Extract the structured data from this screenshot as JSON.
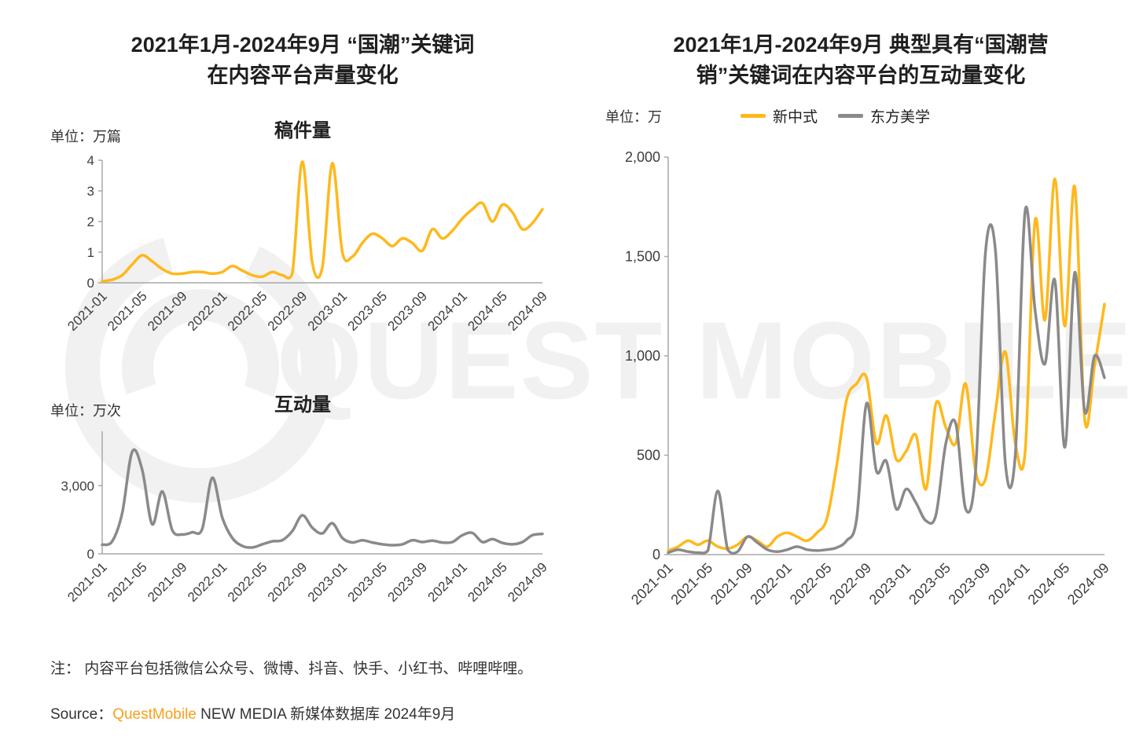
{
  "watermark": "QUEST MOBILE",
  "colors": {
    "brand_orange": "#F7A11A",
    "series_yellow": "#FFB81C",
    "series_gray": "#8A8A8A",
    "axis": "#A8A8A8",
    "tick_text": "#3d3d3d",
    "watermark_gray": "#f1f1f1"
  },
  "left_panel": {
    "title1": "2021年1月-2024年9月 “国潮”关键词",
    "title2": "在内容平台声量变化",
    "chart_top": {
      "subtitle": "稿件量",
      "unit": "单位：万篇"
    },
    "chart_bottom": {
      "subtitle": "互动量",
      "unit": "单位：万次"
    }
  },
  "right_panel": {
    "title1": "2021年1月-2024年9月 典型具有“国潮营",
    "title2": "销”关键词在内容平台的互动量变化",
    "unit": "单位：万",
    "legend": [
      {
        "label": "新中式",
        "color": "#FFB81C"
      },
      {
        "label": "东方美学",
        "color": "#8A8A8A"
      }
    ]
  },
  "footer": {
    "note": "注： 内容平台包括微信公众号、微博、抖音、快手、小红书、哔哩哔哩。",
    "source_label": "Source：",
    "source_brand": "QuestMobile",
    "source_rest": " NEW MEDIA 新媒体数据库 2024年9月"
  },
  "chart_data": [
    {
      "id": "left-top",
      "type": "line",
      "title": "稿件量",
      "panel_title": "2021年1月-2024年9月 “国潮”关键词在内容平台声量变化",
      "ylabel": "万篇",
      "grid": false,
      "ylim": [
        0,
        4
      ],
      "y_ticks": [
        0,
        1,
        2,
        3,
        4
      ],
      "x_tick_step": 4,
      "x_ticks": [
        "2021-01",
        "2021-05",
        "2021-09",
        "2022-01",
        "2022-05",
        "2022-09",
        "2023-01",
        "2023-05",
        "2023-09",
        "2024-01",
        "2024-05",
        "2024-09"
      ],
      "series": [
        {
          "name": "国潮稿件量",
          "color": "#FFB81C",
          "values": [
            0.05,
            0.1,
            0.25,
            0.6,
            0.9,
            0.7,
            0.45,
            0.3,
            0.3,
            0.35,
            0.35,
            0.3,
            0.35,
            0.55,
            0.4,
            0.25,
            0.2,
            0.35,
            0.25,
            0.3,
            3.95,
            0.65,
            0.5,
            3.9,
            1.0,
            0.85,
            1.3,
            1.6,
            1.45,
            1.2,
            1.45,
            1.3,
            1.05,
            1.75,
            1.45,
            1.7,
            2.1,
            2.4,
            2.6,
            2.0,
            2.55,
            2.3,
            1.75,
            1.95,
            2.4
          ]
        }
      ]
    },
    {
      "id": "left-bottom",
      "type": "line",
      "title": "互动量",
      "panel_title": "2021年1月-2024年9月 “国潮”关键词在内容平台声量变化",
      "ylabel": "万次",
      "grid": false,
      "ylim": [
        0,
        5400
      ],
      "y_ticks": [
        0,
        3000
      ],
      "x_tick_step": 4,
      "x_ticks": [
        "2021-01",
        "2021-05",
        "2021-09",
        "2022-01",
        "2022-05",
        "2022-09",
        "2023-01",
        "2023-05",
        "2023-09",
        "2024-01",
        "2024-05",
        "2024-09"
      ],
      "series": [
        {
          "name": "国潮互动量",
          "color": "#8A8A8A",
          "values": [
            400,
            550,
            1800,
            4500,
            3700,
            1300,
            2750,
            1050,
            850,
            950,
            1100,
            3350,
            1600,
            700,
            350,
            280,
            420,
            550,
            600,
            1000,
            1700,
            1150,
            900,
            1350,
            700,
            500,
            600,
            500,
            420,
            380,
            420,
            600,
            520,
            580,
            500,
            520,
            820,
            920,
            520,
            650,
            480,
            420,
            520,
            820,
            880
          ]
        }
      ]
    },
    {
      "id": "right",
      "type": "line",
      "title": "2021年1月-2024年9月 典型具有“国潮营销”关键词在内容平台的互动量变化",
      "ylabel": "万",
      "grid": false,
      "legend_position": "top",
      "ylim": [
        0,
        2000
      ],
      "y_ticks": [
        0,
        500,
        1000,
        1500,
        2000
      ],
      "x_tick_step": 4,
      "x_ticks": [
        "2021-01",
        "2021-05",
        "2021-09",
        "2022-01",
        "2022-05",
        "2022-09",
        "2023-01",
        "2023-05",
        "2023-09",
        "2024-01",
        "2024-05",
        "2024-09"
      ],
      "series": [
        {
          "name": "新中式",
          "color": "#FFB81C",
          "values": [
            20,
            40,
            70,
            50,
            70,
            40,
            30,
            50,
            90,
            70,
            40,
            90,
            110,
            90,
            70,
            110,
            180,
            450,
            780,
            860,
            890,
            560,
            700,
            480,
            520,
            600,
            330,
            760,
            640,
            560,
            860,
            420,
            380,
            720,
            1020,
            560,
            520,
            1680,
            1180,
            1890,
            1150,
            1850,
            680,
            950,
            1260
          ]
        },
        {
          "name": "东方美学",
          "color": "#8A8A8A",
          "values": [
            10,
            25,
            15,
            10,
            20,
            320,
            25,
            15,
            90,
            60,
            25,
            15,
            25,
            40,
            25,
            20,
            25,
            35,
            70,
            180,
            760,
            420,
            470,
            230,
            330,
            260,
            170,
            200,
            560,
            660,
            230,
            420,
            1520,
            1530,
            460,
            500,
            1730,
            1230,
            960,
            1380,
            540,
            1420,
            720,
            1000,
            890
          ]
        }
      ]
    }
  ]
}
